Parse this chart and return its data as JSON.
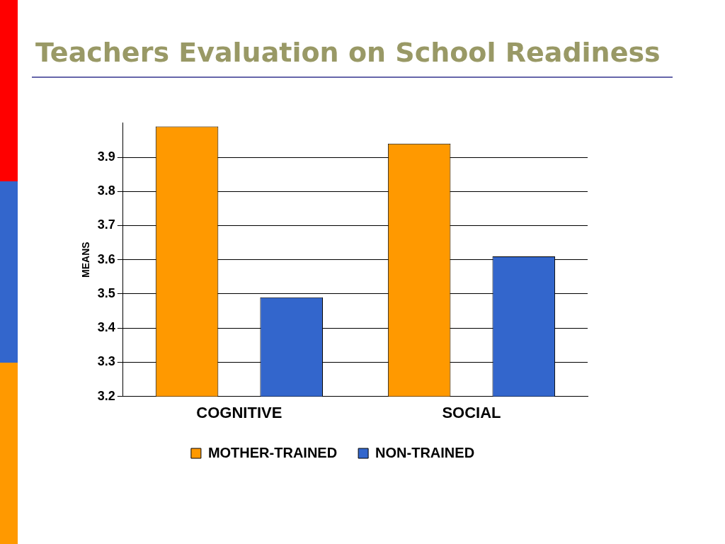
{
  "chart_data": {
    "type": "bar",
    "title": "Teachers Evaluation on School Readiness",
    "ylabel": "MEANS",
    "categories": [
      "COGNITIVE",
      "SOCIAL"
    ],
    "series": [
      {
        "name": "MOTHER-TRAINED",
        "color": "#ff9900",
        "values": [
          3.99,
          3.94
        ]
      },
      {
        "name": "NON-TRAINED",
        "color": "#3366cc",
        "values": [
          3.49,
          3.61
        ]
      }
    ],
    "ylim": [
      3.2,
      4.0
    ],
    "yticks": [
      3.2,
      3.3,
      3.4,
      3.5,
      3.6,
      3.7,
      3.8,
      3.9
    ],
    "grid": "y",
    "legend": "bottom"
  }
}
